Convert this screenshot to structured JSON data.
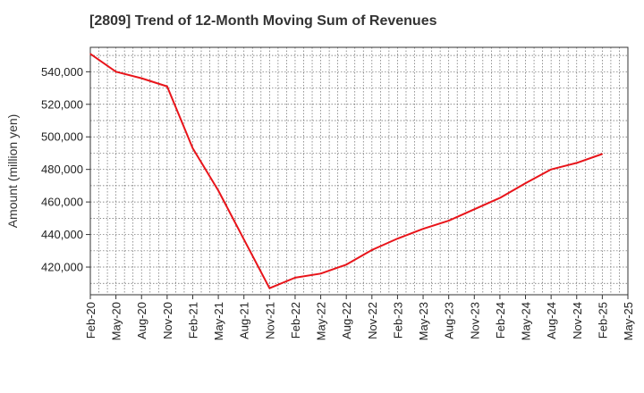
{
  "chart_data": {
    "type": "line",
    "title": "[2809]  Trend of 12-Month Moving Sum of Revenues",
    "xlabel": "",
    "ylabel": "Amount (million yen)",
    "x_ticks": [
      "Feb-20",
      "May-20",
      "Aug-20",
      "Nov-20",
      "Feb-21",
      "May-21",
      "Aug-21",
      "Nov-21",
      "Feb-22",
      "May-22",
      "Aug-22",
      "Nov-22",
      "Feb-23",
      "May-23",
      "Aug-23",
      "Nov-23",
      "Feb-24",
      "May-24",
      "Aug-24",
      "Nov-24",
      "Feb-25",
      "May-25"
    ],
    "y_ticks": [
      420000,
      440000,
      460000,
      480000,
      500000,
      520000,
      540000
    ],
    "y_tick_labels": [
      "420,000",
      "440,000",
      "460,000",
      "480,000",
      "500,000",
      "520,000",
      "540,000"
    ],
    "ylim": [
      403000,
      555000
    ],
    "grid": true,
    "colors": {
      "line": "#e8141a",
      "grid": "#666666",
      "axis": "#333333"
    },
    "series": [
      {
        "values": [
          551000,
          540000,
          536000,
          531000,
          493000,
          467000,
          437000,
          407000,
          413500,
          416000,
          421500,
          430500,
          437500,
          443500,
          448500,
          455500,
          462500,
          471500,
          480000,
          484000,
          489500
        ]
      }
    ]
  }
}
